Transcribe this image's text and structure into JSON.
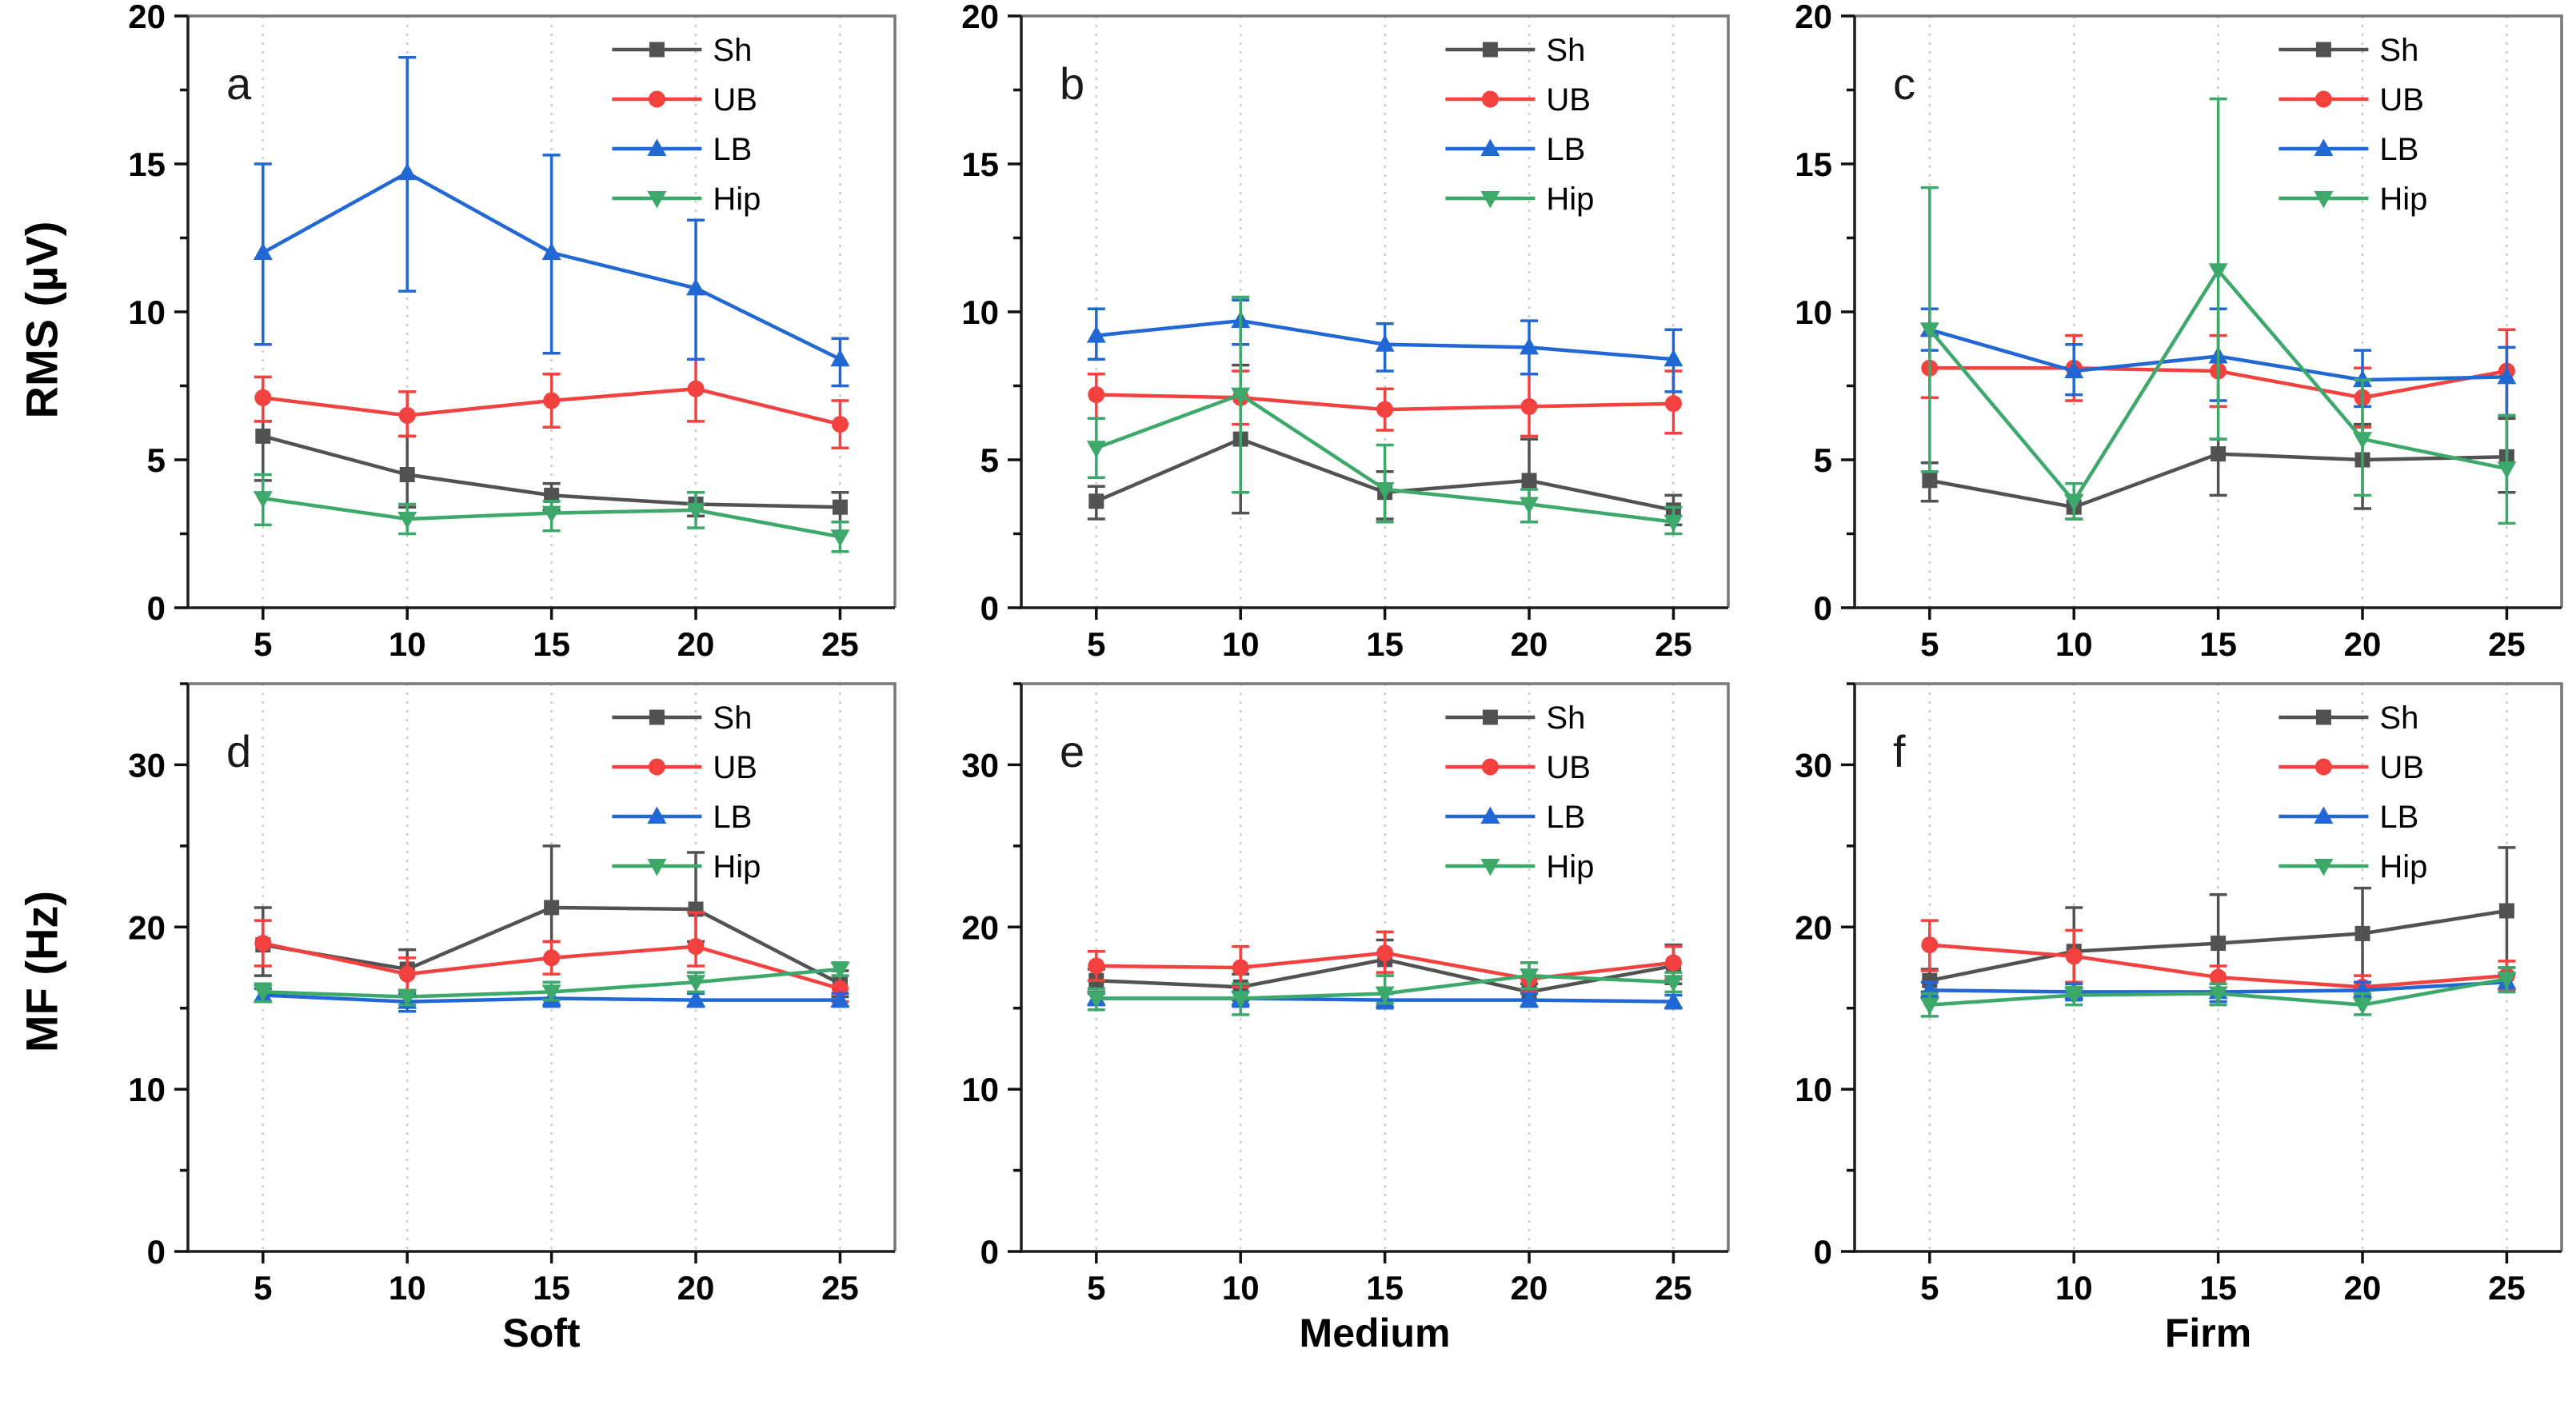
{
  "figure": {
    "row_labels": [
      "RMS (µV)",
      "MF (Hz)"
    ],
    "column_labels": [
      "Soft",
      "Medium",
      "Firm"
    ],
    "series_names": [
      "Sh",
      "UB",
      "LB",
      "Hip"
    ],
    "colors": {
      "sh_gray": "#525252",
      "ub_red": "#F2413E",
      "lb_blue": "#2268D4",
      "hip_green": "#3CA96B"
    }
  },
  "chart_data": [
    {
      "id": "a",
      "type": "line",
      "row": 0,
      "col": 0,
      "row_label": "RMS (µV)",
      "col_label": "Soft",
      "x": [
        5,
        10,
        15,
        20,
        25
      ],
      "xlim": [
        2.4,
        26.9
      ],
      "ylim": [
        0,
        20
      ],
      "yticks": [
        0,
        5,
        10,
        15,
        20
      ],
      "yminor": 2.5,
      "grid": "x-dotted",
      "legend_position": "top-right",
      "series": [
        {
          "name": "Sh",
          "marker": "square",
          "color": "#525252",
          "values": [
            5.8,
            4.5,
            3.8,
            3.5,
            3.4
          ],
          "err_dn": [
            1.5,
            1.1,
            0.5,
            0.4,
            0.5
          ],
          "err_up": [
            0.5,
            1.3,
            0.4,
            0.4,
            0.5
          ]
        },
        {
          "name": "UB",
          "marker": "circle",
          "color": "#F2413E",
          "values": [
            7.1,
            6.5,
            7.0,
            7.4,
            6.2
          ],
          "err_dn": [
            0.8,
            0.7,
            0.9,
            1.1,
            0.8
          ],
          "err_up": [
            0.7,
            0.8,
            0.9,
            1.0,
            0.8
          ]
        },
        {
          "name": "LB",
          "marker": "triangle-up",
          "color": "#2268D4",
          "values": [
            12.0,
            14.7,
            12.0,
            10.8,
            8.4
          ],
          "err_dn": [
            3.1,
            4.0,
            3.4,
            2.4,
            0.9
          ],
          "err_up": [
            3.0,
            3.9,
            3.3,
            2.3,
            0.7
          ]
        },
        {
          "name": "Hip",
          "marker": "triangle-down",
          "color": "#3CA96B",
          "values": [
            3.7,
            3.0,
            3.2,
            3.3,
            2.4
          ],
          "err_dn": [
            0.9,
            0.5,
            0.6,
            0.6,
            0.5
          ],
          "err_up": [
            0.8,
            0.5,
            0.4,
            0.6,
            0.5
          ]
        }
      ]
    },
    {
      "id": "b",
      "type": "line",
      "row": 0,
      "col": 1,
      "row_label": "RMS (µV)",
      "col_label": "Medium",
      "x": [
        5,
        10,
        15,
        20,
        25
      ],
      "xlim": [
        2.4,
        26.9
      ],
      "ylim": [
        0,
        20
      ],
      "yticks": [
        0,
        5,
        10,
        15,
        20
      ],
      "yminor": 2.5,
      "grid": "x-dotted",
      "legend_position": "top-right",
      "series": [
        {
          "name": "Sh",
          "marker": "square",
          "color": "#525252",
          "values": [
            3.6,
            5.7,
            3.9,
            4.3,
            3.3
          ],
          "err_dn": [
            0.6,
            2.5,
            0.9,
            1.4,
            0.5
          ],
          "err_up": [
            0.5,
            2.5,
            0.7,
            1.4,
            0.5
          ]
        },
        {
          "name": "UB",
          "marker": "circle",
          "color": "#F2413E",
          "values": [
            7.2,
            7.1,
            6.7,
            6.8,
            6.9
          ],
          "err_dn": [
            0.8,
            0.9,
            0.7,
            1.0,
            1.0
          ],
          "err_up": [
            0.7,
            0.9,
            0.7,
            1.1,
            1.1
          ]
        },
        {
          "name": "LB",
          "marker": "triangle-up",
          "color": "#2268D4",
          "values": [
            9.2,
            9.7,
            8.9,
            8.8,
            8.4
          ],
          "err_dn": [
            0.8,
            0.8,
            0.9,
            0.9,
            1.1
          ],
          "err_up": [
            0.9,
            0.7,
            0.7,
            0.9,
            1.0
          ]
        },
        {
          "name": "Hip",
          "marker": "triangle-down",
          "color": "#3CA96B",
          "values": [
            5.4,
            7.2,
            4.0,
            3.5,
            2.9
          ],
          "err_dn": [
            1.0,
            3.3,
            1.1,
            0.6,
            0.4
          ],
          "err_up": [
            1.0,
            3.3,
            1.5,
            0.5,
            0.5
          ]
        }
      ]
    },
    {
      "id": "c",
      "type": "line",
      "row": 0,
      "col": 2,
      "row_label": "RMS (µV)",
      "col_label": "Firm",
      "x": [
        5,
        10,
        15,
        20,
        25
      ],
      "xlim": [
        2.4,
        26.9
      ],
      "ylim": [
        0,
        20
      ],
      "yticks": [
        0,
        5,
        10,
        15,
        20
      ],
      "yminor": 2.5,
      "grid": "x-dotted",
      "legend_position": "top-right",
      "series": [
        {
          "name": "Sh",
          "marker": "square",
          "color": "#525252",
          "values": [
            4.3,
            3.4,
            5.2,
            5.0,
            5.1
          ],
          "err_dn": [
            0.7,
            0.4,
            1.4,
            1.65,
            1.2
          ],
          "err_up": [
            0.6,
            0.4,
            0.5,
            1.2,
            1.3
          ]
        },
        {
          "name": "UB",
          "marker": "circle",
          "color": "#F2413E",
          "values": [
            8.1,
            8.1,
            8.0,
            7.1,
            8.0
          ],
          "err_dn": [
            1.0,
            1.1,
            1.2,
            1.0,
            1.5
          ],
          "err_up": [
            1.1,
            1.1,
            1.2,
            1.0,
            1.4
          ]
        },
        {
          "name": "LB",
          "marker": "triangle-up",
          "color": "#2268D4",
          "values": [
            9.4,
            8.0,
            8.5,
            7.7,
            7.8
          ],
          "err_dn": [
            0.7,
            0.8,
            1.5,
            0.9,
            1.3
          ],
          "err_up": [
            0.7,
            0.9,
            1.6,
            1.0,
            1.0
          ]
        },
        {
          "name": "Hip",
          "marker": "triangle-down",
          "color": "#3CA96B",
          "values": [
            9.4,
            3.6,
            11.4,
            5.7,
            4.7
          ],
          "err_dn": [
            4.8,
            0.6,
            5.7,
            1.9,
            1.85
          ],
          "err_up": [
            4.8,
            0.6,
            5.8,
            2.0,
            1.8
          ]
        }
      ]
    },
    {
      "id": "d",
      "type": "line",
      "row": 1,
      "col": 0,
      "row_label": "MF (Hz)",
      "col_label": "Soft",
      "x": [
        5,
        10,
        15,
        20,
        25
      ],
      "xlim": [
        2.4,
        26.9
      ],
      "ylim": [
        0,
        35
      ],
      "yticks": [
        0,
        10,
        20,
        30
      ],
      "yminor": 5,
      "grid": "x-dotted",
      "legend_position": "top-right",
      "series": [
        {
          "name": "Sh",
          "marker": "square",
          "color": "#525252",
          "values": [
            18.9,
            17.4,
            21.2,
            21.1,
            16.5
          ],
          "err_dn": [
            1.9,
            1.5,
            2.1,
            2.0,
            0.8
          ],
          "err_up": [
            2.3,
            1.2,
            3.8,
            3.5,
            0.8
          ]
        },
        {
          "name": "UB",
          "marker": "circle",
          "color": "#F2413E",
          "values": [
            19.0,
            17.1,
            18.1,
            18.8,
            16.2
          ],
          "err_dn": [
            1.4,
            1.0,
            1.0,
            1.2,
            0.8
          ],
          "err_up": [
            1.4,
            1.0,
            1.0,
            2.1,
            0.8
          ]
        },
        {
          "name": "LB",
          "marker": "triangle-up",
          "color": "#2268D4",
          "values": [
            15.8,
            15.4,
            15.6,
            15.5,
            15.5
          ],
          "err_dn": [
            0.4,
            0.6,
            0.5,
            0.4,
            0.4
          ],
          "err_up": [
            0.4,
            0.4,
            0.4,
            0.4,
            0.4
          ]
        },
        {
          "name": "Hip",
          "marker": "triangle-down",
          "color": "#3CA96B",
          "values": [
            16.0,
            15.7,
            16.0,
            16.6,
            17.4
          ],
          "err_dn": [
            0.6,
            0.5,
            0.5,
            0.6,
            0.4
          ],
          "err_up": [
            0.5,
            0.4,
            0.6,
            0.6,
            0.4
          ]
        }
      ]
    },
    {
      "id": "e",
      "type": "line",
      "row": 1,
      "col": 1,
      "row_label": "MF (Hz)",
      "col_label": "Medium",
      "x": [
        5,
        10,
        15,
        20,
        25
      ],
      "xlim": [
        2.4,
        26.9
      ],
      "ylim": [
        0,
        35
      ],
      "yticks": [
        0,
        10,
        20,
        30
      ],
      "yminor": 5,
      "grid": "x-dotted",
      "legend_position": "top-right",
      "series": [
        {
          "name": "Sh",
          "marker": "square",
          "color": "#525252",
          "values": [
            16.7,
            16.3,
            18.0,
            16.0,
            17.6
          ],
          "err_dn": [
            0.7,
            0.8,
            1.0,
            0.5,
            1.1
          ],
          "err_up": [
            0.7,
            0.8,
            1.2,
            0.5,
            1.3
          ]
        },
        {
          "name": "UB",
          "marker": "circle",
          "color": "#F2413E",
          "values": [
            17.6,
            17.5,
            18.4,
            16.8,
            17.8
          ],
          "err_dn": [
            0.9,
            1.2,
            1.2,
            0.8,
            1.0
          ],
          "err_up": [
            0.9,
            1.3,
            1.3,
            1.0,
            1.0
          ]
        },
        {
          "name": "LB",
          "marker": "triangle-up",
          "color": "#2268D4",
          "values": [
            15.6,
            15.6,
            15.5,
            15.5,
            15.4
          ],
          "err_dn": [
            0.4,
            0.5,
            0.5,
            0.4,
            0.4
          ],
          "err_up": [
            0.3,
            0.4,
            0.4,
            0.4,
            0.4
          ]
        },
        {
          "name": "Hip",
          "marker": "triangle-down",
          "color": "#3CA96B",
          "values": [
            15.6,
            15.6,
            15.9,
            17.0,
            16.6
          ],
          "err_dn": [
            0.7,
            1.0,
            0.6,
            0.8,
            0.6
          ],
          "err_up": [
            0.6,
            0.9,
            1.1,
            0.8,
            0.6
          ]
        }
      ]
    },
    {
      "id": "f",
      "type": "line",
      "row": 1,
      "col": 2,
      "row_label": "MF (Hz)",
      "col_label": "Firm",
      "x": [
        5,
        10,
        15,
        20,
        25
      ],
      "xlim": [
        2.4,
        26.9
      ],
      "ylim": [
        0,
        35
      ],
      "yticks": [
        0,
        10,
        20,
        30
      ],
      "yminor": 5,
      "grid": "x-dotted",
      "legend_position": "top-right",
      "series": [
        {
          "name": "Sh",
          "marker": "square",
          "color": "#525252",
          "values": [
            16.7,
            18.5,
            19.0,
            19.6,
            21.0
          ],
          "err_dn": [
            0.7,
            2.5,
            3.0,
            3.0,
            3.5
          ],
          "err_up": [
            0.7,
            2.7,
            3.0,
            2.8,
            3.9
          ]
        },
        {
          "name": "UB",
          "marker": "circle",
          "color": "#F2413E",
          "values": [
            18.9,
            18.2,
            16.9,
            16.3,
            17.0
          ],
          "err_dn": [
            1.6,
            1.6,
            1.0,
            0.7,
            0.9
          ],
          "err_up": [
            1.5,
            1.6,
            0.7,
            0.7,
            0.9
          ]
        },
        {
          "name": "LB",
          "marker": "triangle-up",
          "color": "#2268D4",
          "values": [
            16.1,
            16.0,
            16.0,
            16.1,
            16.6
          ],
          "err_dn": [
            0.5,
            0.5,
            0.6,
            0.5,
            0.6
          ],
          "err_up": [
            0.5,
            0.5,
            0.5,
            0.5,
            0.5
          ]
        },
        {
          "name": "Hip",
          "marker": "triangle-down",
          "color": "#3CA96B",
          "values": [
            15.2,
            15.8,
            15.9,
            15.2,
            16.8
          ],
          "err_dn": [
            0.7,
            0.6,
            0.7,
            0.6,
            0.8
          ],
          "err_up": [
            0.7,
            0.5,
            0.6,
            0.7,
            0.7
          ]
        }
      ]
    }
  ]
}
